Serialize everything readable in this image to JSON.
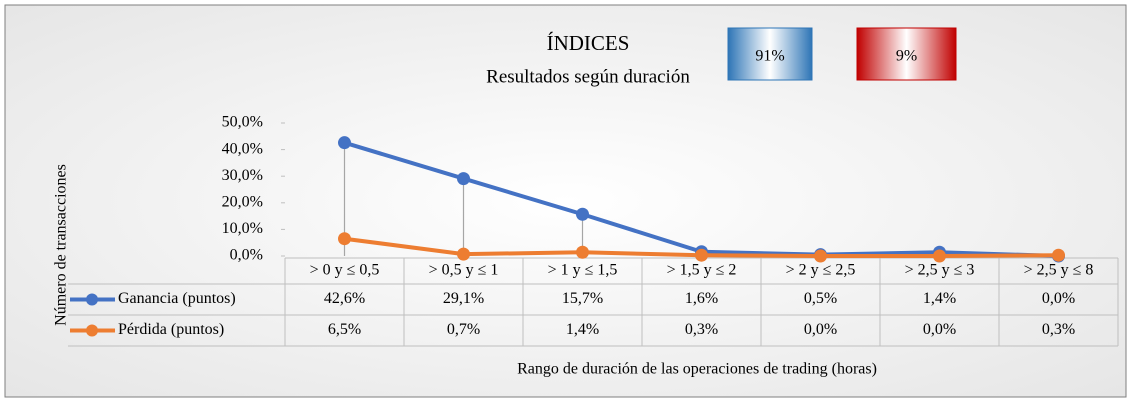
{
  "chart_data": {
    "type": "line",
    "title": "ÍNDICES",
    "subtitle": "Resultados según duración",
    "badges": [
      {
        "value": 91,
        "label": "91%",
        "color": "#2e75b6"
      },
      {
        "value": 9,
        "label": "9%",
        "color": "#c00000"
      }
    ],
    "y_label": "Número de transacciones",
    "x_label": "Rango de duración de las operaciones de trading (horas)",
    "categories": [
      "> 0 y ≤ 0,5",
      "> 0,5 y ≤ 1",
      "> 1 y ≤ 1,5",
      "> 1,5 y ≤ 2",
      "> 2 y ≤ 2,5",
      "> 2,5 y ≤ 3",
      "> 2,5 y ≤ 8"
    ],
    "series": [
      {
        "name": "Ganancia (puntos)",
        "color": "#4472c4",
        "values": [
          42.6,
          29.1,
          15.7,
          1.6,
          0.5,
          1.4,
          0.0
        ],
        "value_labels": [
          "42,6%",
          "29,1%",
          "15,7%",
          "1,6%",
          "0,5%",
          "1,4%",
          "0,0%"
        ]
      },
      {
        "name": "Pérdida (puntos)",
        "color": "#ed7d31",
        "values": [
          6.5,
          0.7,
          1.4,
          0.3,
          0.0,
          0.0,
          0.3
        ],
        "value_labels": [
          "6,5%",
          "0,7%",
          "1,4%",
          "0,3%",
          "0,0%",
          "0,0%",
          "0,3%"
        ]
      }
    ],
    "ylim": [
      0,
      50
    ],
    "yticks": [
      {
        "value": 0,
        "label": "0,0%"
      },
      {
        "value": 10,
        "label": "10,0%"
      },
      {
        "value": 20,
        "label": "20,0%"
      },
      {
        "value": 30,
        "label": "30,0%"
      },
      {
        "value": 40,
        "label": "40,0%"
      },
      {
        "value": 50,
        "label": "50,0%"
      }
    ],
    "drop_lines": true
  }
}
